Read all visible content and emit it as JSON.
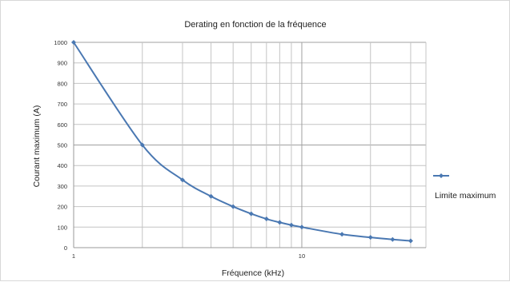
{
  "chart_data": {
    "type": "line",
    "title": "Derating en fonction de la fréquence",
    "xlabel": "Fréquence (kHz)",
    "ylabel": "Courant maximum (A)",
    "x_scale": "log",
    "xlim": [
      1,
      35
    ],
    "ylim": [
      0,
      1000
    ],
    "x_tick_labels": [
      "1",
      "10"
    ],
    "y_ticks": [
      0,
      100,
      200,
      300,
      400,
      500,
      600,
      700,
      800,
      900,
      1000
    ],
    "grid": true,
    "legend": "right",
    "colors": {
      "series": "#4a78b2",
      "grid": "#c4c4c4",
      "major_grid": "#a0a0a0"
    },
    "series": [
      {
        "name": "Limite maximum",
        "x": [
          1,
          2,
          3,
          4,
          5,
          6,
          7,
          8,
          9,
          10,
          15,
          20,
          25,
          30
        ],
        "y": [
          1000,
          500,
          330,
          250,
          200,
          165,
          140,
          123,
          110,
          100,
          65,
          50,
          40,
          33
        ]
      }
    ]
  }
}
